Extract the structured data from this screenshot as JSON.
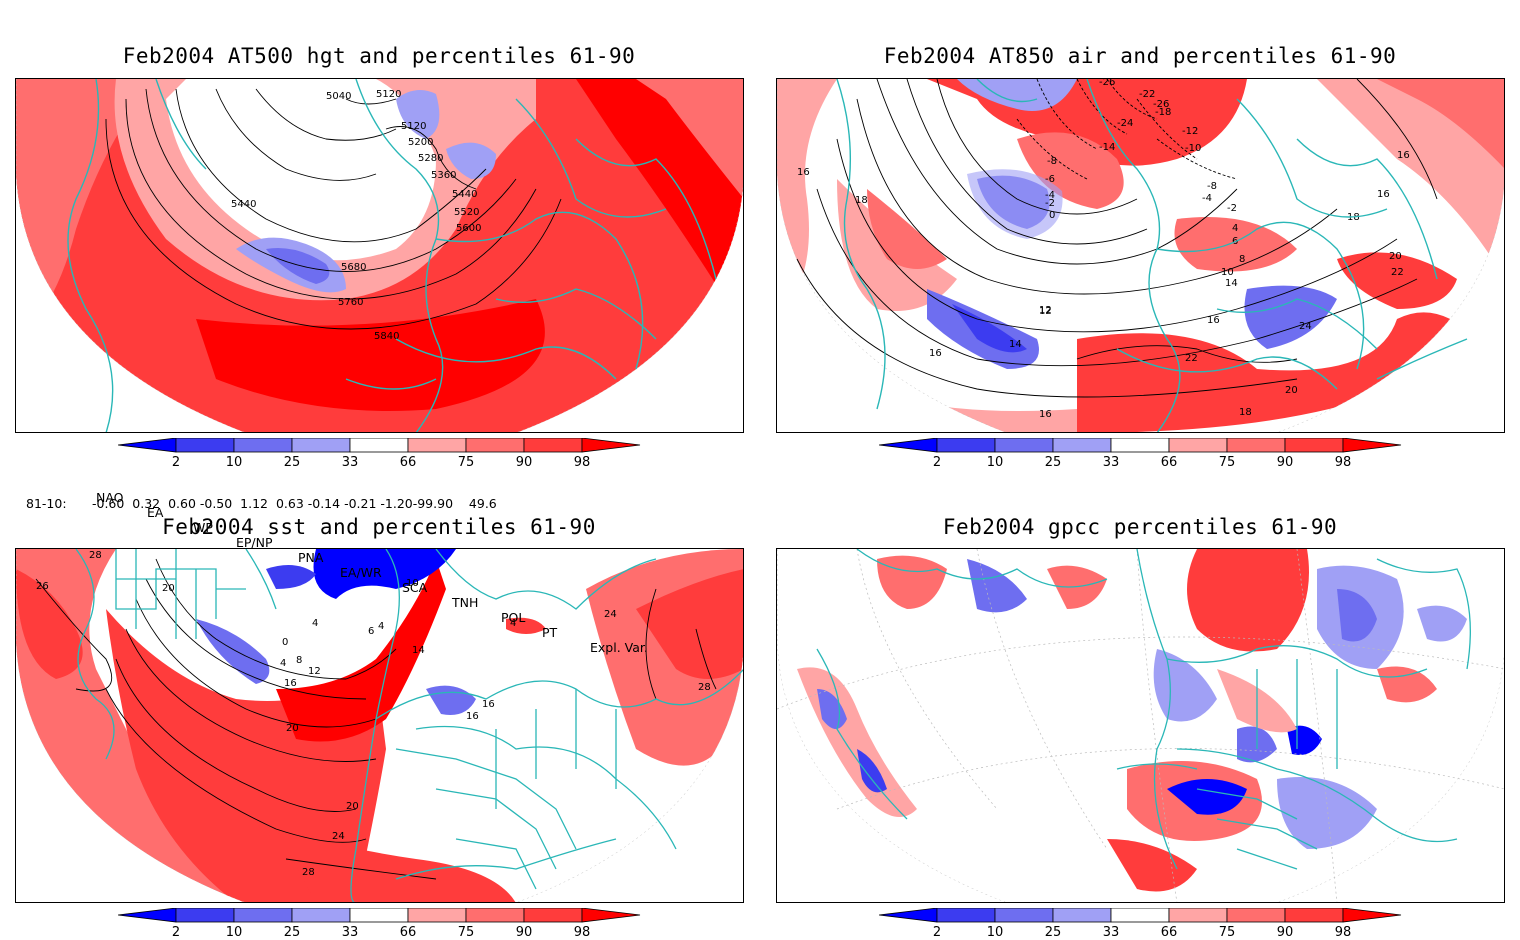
{
  "panels": [
    {
      "title": "Feb2004 AT500 hgt and percentiles 61-90",
      "contour_labels": [
        "5040",
        "5120",
        "5120",
        "5200",
        "5280",
        "5360",
        "5440",
        "5440",
        "5520",
        "5600",
        "5680",
        "5760",
        "5840"
      ]
    },
    {
      "title": "Feb2004 AT850 air and percentiles 61-90",
      "contour_labels": [
        "-26",
        "-22",
        "-26",
        "-24",
        "-18",
        "-12",
        "-14",
        "-10",
        "-8",
        "-6",
        "-4",
        "-2",
        "0",
        "-8",
        "-4",
        "-2",
        "4",
        "6",
        "8",
        "10",
        "12",
        "14",
        "16",
        "16",
        "16",
        "18",
        "18",
        "20",
        "22",
        "24",
        "22",
        "20",
        "18",
        "16",
        "14",
        "12",
        "16",
        "16"
      ]
    },
    {
      "title": "Feb2004 sst and percentiles 61-90",
      "contour_labels": [
        "28",
        "26",
        "20",
        "0",
        "4",
        "8",
        "12",
        "16",
        "20",
        "20",
        "24",
        "28",
        "4",
        "6",
        "4",
        "10",
        "4",
        "14",
        "16",
        "16",
        "24",
        "28"
      ]
    },
    {
      "title": "Feb2004 gpcc percentiles 61-90",
      "contour_labels": []
    }
  ],
  "colorbar": {
    "labels": [
      "2",
      "10",
      "25",
      "33",
      "66",
      "75",
      "90",
      "98"
    ],
    "colors": [
      "#0000ff",
      "#3c3cf0",
      "#6e6ef0",
      "#a0a0f5",
      "#ffffff",
      "#ffa5a5",
      "#ff6e6e",
      "#ff3c3c",
      "#ff0000"
    ]
  },
  "teleconnections": {
    "headers": [
      "NAO",
      "EA",
      "WP",
      "EP/NP",
      "PNA",
      "EA/WR",
      "SCA",
      "TNH",
      "POL",
      "PT",
      "Expl. Var."
    ],
    "row_label": "81-10:",
    "row_values": "-0.60  0.32  0.60 -0.50  1.12  0.63 -0.14 -0.21 -1.20-99.90    49.6"
  }
}
